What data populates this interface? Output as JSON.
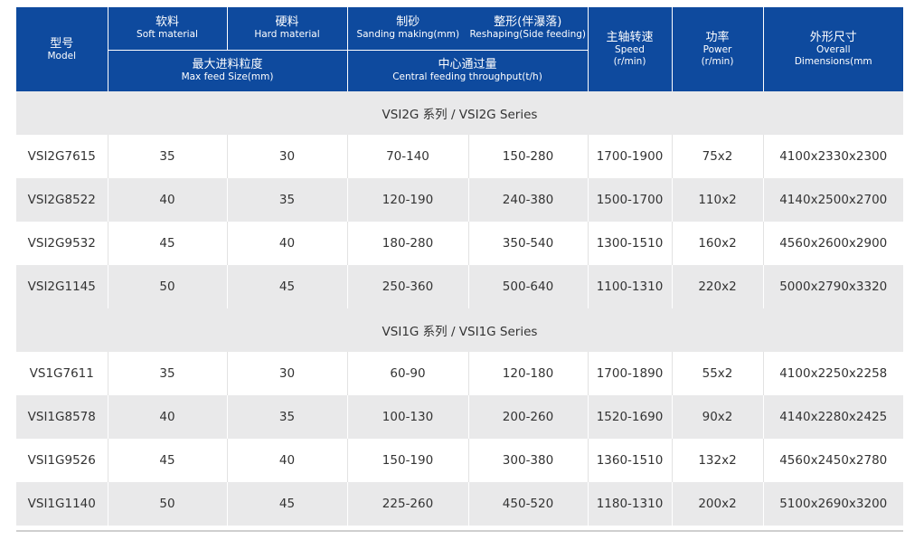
{
  "header": {
    "model_zh": "型号",
    "model_en": "Model",
    "soft_zh": "软料",
    "soft_en": "Soft material",
    "hard_zh": "硬料",
    "hard_en": "Hard material",
    "sand_zh": "制砂",
    "sand_en": "Sanding making(mm)",
    "reshape_zh": "整形(伴瀑落)",
    "reshape_en": "Reshaping(Side feeding)",
    "maxfeed_zh": "最大进料粒度",
    "maxfeed_en": "Max feed Size(mm)",
    "through_zh": "中心通过量",
    "through_en": "Central feeding throughput(t/h)",
    "speed_zh": "主轴转速",
    "speed_en1": "Speed",
    "speed_en2": "(r/min)",
    "power_zh": "功率",
    "power_en1": "Power",
    "power_en2": "(r/min)",
    "dim_zh": "外形尺寸",
    "dim_en1": "Overall",
    "dim_en2": "Dimensions(mm"
  },
  "sections": [
    {
      "title": "VSI2G 系列 / VSI2G Series",
      "rows": [
        {
          "model": "VSI2G7615",
          "soft": "35",
          "hard": "30",
          "sand": "70-140",
          "reshape": "150-280",
          "speed": "1700-1900",
          "power": "75x2",
          "dim": "4100x2330x2300"
        },
        {
          "model": "VSI2G8522",
          "soft": "40",
          "hard": "35",
          "sand": "120-190",
          "reshape": "240-380",
          "speed": "1500-1700",
          "power": "110x2",
          "dim": "4140x2500x2700"
        },
        {
          "model": "VSI2G9532",
          "soft": "45",
          "hard": "40",
          "sand": "180-280",
          "reshape": "350-540",
          "speed": "1300-1510",
          "power": "160x2",
          "dim": "4560x2600x2900"
        },
        {
          "model": "VSI2G1145",
          "soft": "50",
          "hard": "45",
          "sand": "250-360",
          "reshape": "500-640",
          "speed": "1100-1310",
          "power": "220x2",
          "dim": "5000x2790x3320"
        }
      ]
    },
    {
      "title": "VSI1G 系列 / VSI1G Series",
      "rows": [
        {
          "model": "VS1G7611",
          "soft": "35",
          "hard": "30",
          "sand": "60-90",
          "reshape": "120-180",
          "speed": "1700-1890",
          "power": "55x2",
          "dim": "4100x2250x2258"
        },
        {
          "model": "VSI1G8578",
          "soft": "40",
          "hard": "35",
          "sand": "100-130",
          "reshape": "200-260",
          "speed": "1520-1690",
          "power": "90x2",
          "dim": "4140x2280x2425"
        },
        {
          "model": "VSI1G9526",
          "soft": "45",
          "hard": "40",
          "sand": "150-190",
          "reshape": "300-380",
          "speed": "1360-1510",
          "power": "132x2",
          "dim": "4560x2450x2780"
        },
        {
          "model": "VSI1G1140",
          "soft": "50",
          "hard": "45",
          "sand": "225-260",
          "reshape": "450-520",
          "speed": "1180-1310",
          "power": "200x2",
          "dim": "5100x2690x3200"
        }
      ]
    }
  ]
}
